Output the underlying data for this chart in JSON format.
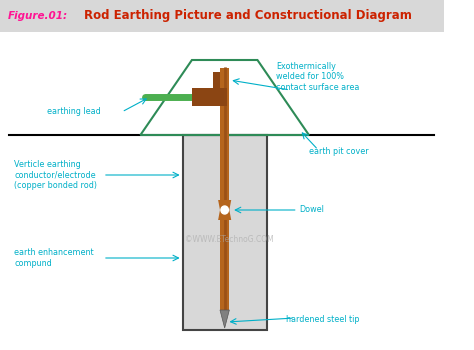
{
  "title_label": "Figure.01:",
  "title_main": "Rod Earthing Picture and Constructional Diagram",
  "title_label_color": "#ff1493",
  "title_main_color": "#cc2200",
  "title_bg_color": "#d8d8d8",
  "background_color": "#ffffff",
  "label_color": "#00b0c8",
  "pit_fill_color": "#d8d8d8",
  "pit_border_color": "#444444",
  "rod_color": "#b5651d",
  "rod_shade_color": "#8B4513",
  "connector_color": "#8B4513",
  "earthing_lead_color": "#4caf50",
  "cover_outline_color": "#2e8b57",
  "tip_color": "#808080",
  "dowel_color": "#b5651d",
  "watermark": "©WWW.ETechnoG.COM",
  "labels": {
    "exothermic": "Exothermically\nwelded for 100%\ncontact surface area",
    "earthing_lead": "earthing lead",
    "earth_pit_cover": "earth pit cover",
    "verticle": "Verticle earthing\nconductor/electrode\n(copper bonded rod)",
    "dowel": "Dowel",
    "earth_enhancement": "earth enhancement\ncompund",
    "hardened_tip": "hardened steel tip"
  }
}
